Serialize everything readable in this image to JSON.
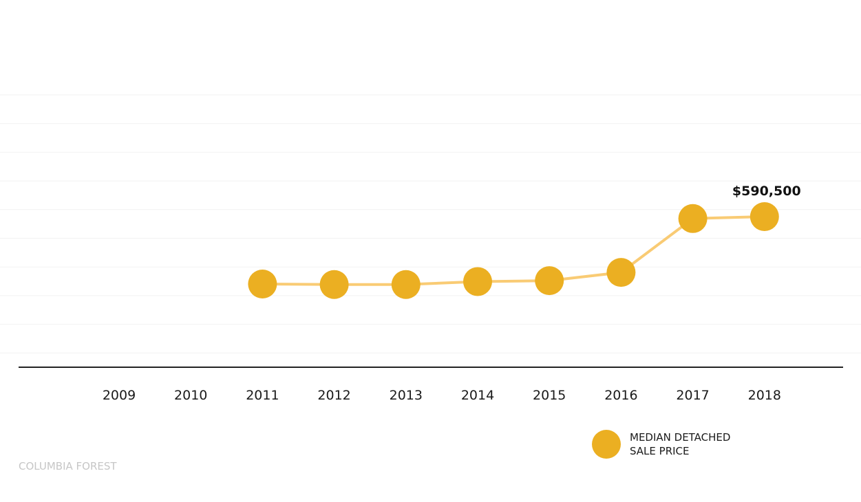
{
  "caption": "COLUMBIA FOREST",
  "colors": {
    "marker": "#EBAF22",
    "line": "#F9CB74",
    "grid": "#f2f2f2",
    "axis": "#222222"
  },
  "chart_data": {
    "type": "line",
    "title": "",
    "xlabel": "",
    "ylabel": "",
    "categories": [
      "2009",
      "2010",
      "2011",
      "2012",
      "2013",
      "2014",
      "2015",
      "2016",
      "2017",
      "2018"
    ],
    "series": [
      {
        "name": "MEDIAN DETACHED SALE PRICE",
        "values": [
          null,
          null,
          329000,
          327000,
          327000,
          338500,
          342000,
          374000,
          583000,
          590500
        ]
      }
    ],
    "data_labels": [
      {
        "category": "2018",
        "text": "$590,500"
      }
    ],
    "grid": true,
    "y_tick_labels_shown": false,
    "legend_position": "bottom-right"
  }
}
